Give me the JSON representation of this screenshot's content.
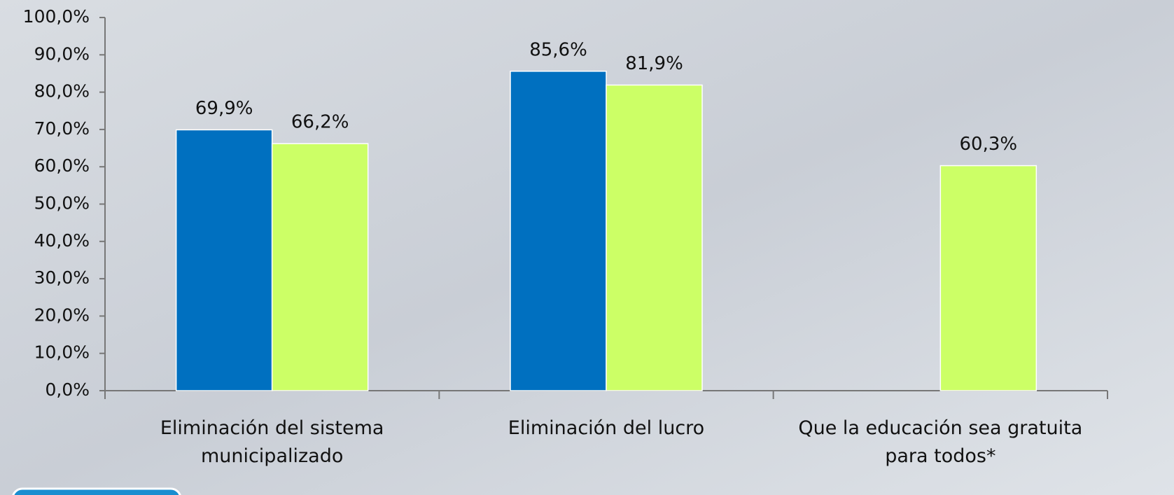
{
  "chart_data": {
    "type": "bar",
    "categories": [
      "Eliminación del sistema\nmunicipalizado",
      "Eliminación del lucro",
      "Que la educación  sea gratuita\npara todos*"
    ],
    "series": [
      {
        "color": "#0070c0",
        "values": [
          69.9,
          85.6,
          null
        ],
        "value_labels": [
          "69,9%",
          "85,6%",
          null
        ]
      },
      {
        "color": "#ccff66",
        "values": [
          66.2,
          81.9,
          60.3
        ],
        "value_labels": [
          "66,2%",
          "81,9%",
          "60,3%"
        ]
      }
    ],
    "ylim": [
      0,
      100
    ],
    "yticks": [
      {
        "value": 0,
        "label": "0,0%"
      },
      {
        "value": 10,
        "label": "10,0%"
      },
      {
        "value": 20,
        "label": "20,0%"
      },
      {
        "value": 30,
        "label": "30,0%"
      },
      {
        "value": 40,
        "label": "40,0%"
      },
      {
        "value": 50,
        "label": "50,0%"
      },
      {
        "value": 60,
        "label": "60,0%"
      },
      {
        "value": 70,
        "label": "70,0%"
      },
      {
        "value": 80,
        "label": "80,0%"
      },
      {
        "value": 90,
        "label": "90,0%"
      },
      {
        "value": 100,
        "label": "100,0%"
      }
    ]
  }
}
